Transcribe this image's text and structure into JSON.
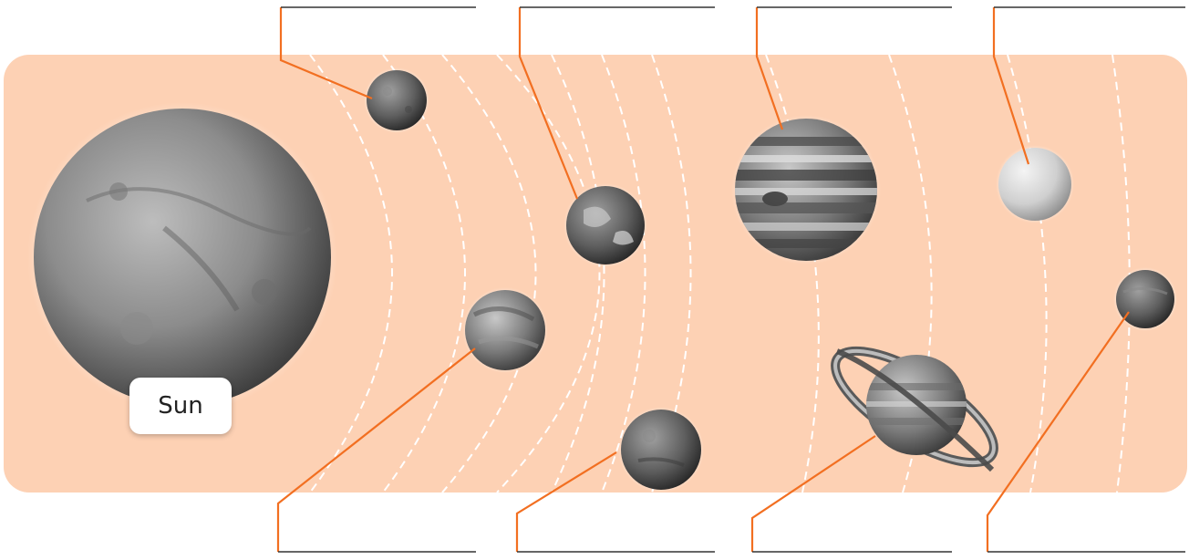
{
  "diagram": {
    "sun_label": "Sun",
    "colors": {
      "panel": "#fdd1b4",
      "leader_line": "#f26f21",
      "orbit": "#ffffff",
      "answer_line": "#333333"
    },
    "bodies": [
      {
        "id": "sun",
        "name": "sun-icon"
      },
      {
        "id": "p1",
        "name": "planet-1-icon"
      },
      {
        "id": "p2",
        "name": "planet-2-icon"
      },
      {
        "id": "p3",
        "name": "planet-3-icon"
      },
      {
        "id": "p4",
        "name": "planet-4-icon"
      },
      {
        "id": "p5",
        "name": "planet-5-icon"
      },
      {
        "id": "p6",
        "name": "planet-6-ringed-icon"
      },
      {
        "id": "p7",
        "name": "planet-7-icon"
      },
      {
        "id": "p8",
        "name": "planet-8-icon"
      }
    ],
    "answer_blanks": [
      {
        "id": "blank-top-1",
        "text": ""
      },
      {
        "id": "blank-top-2",
        "text": ""
      },
      {
        "id": "blank-top-3",
        "text": ""
      },
      {
        "id": "blank-top-4",
        "text": ""
      },
      {
        "id": "blank-bottom-1",
        "text": ""
      },
      {
        "id": "blank-bottom-2",
        "text": ""
      },
      {
        "id": "blank-bottom-3",
        "text": ""
      },
      {
        "id": "blank-bottom-4",
        "text": ""
      }
    ]
  }
}
